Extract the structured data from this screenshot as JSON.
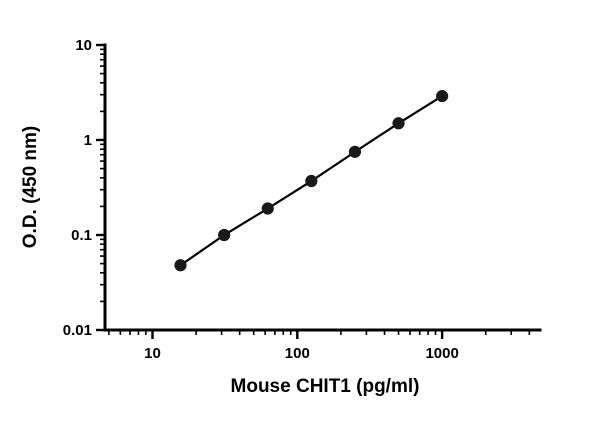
{
  "chart_data": {
    "type": "scatter",
    "title": "",
    "xlabel": "Mouse CHIT1 (pg/ml)",
    "ylabel": "O.D. (450 nm)",
    "x_scale": "log",
    "y_scale": "log",
    "x": [
      15.6,
      31.25,
      62.5,
      125,
      250,
      500,
      1000
    ],
    "y": [
      0.048,
      0.1,
      0.19,
      0.37,
      0.75,
      1.5,
      2.9
    ],
    "x_ticks": [
      {
        "value": 10,
        "label": "10"
      },
      {
        "value": 100,
        "label": "100"
      },
      {
        "value": 1000,
        "label": "1000"
      }
    ],
    "y_ticks": [
      {
        "value": 0.01,
        "label": "0.01"
      },
      {
        "value": 0.1,
        "label": "0.1"
      },
      {
        "value": 1,
        "label": "1"
      },
      {
        "value": 10,
        "label": "10"
      }
    ],
    "x_range": [
      4.7,
      4740
    ],
    "y_range": [
      0.01,
      10
    ],
    "legend": "none",
    "grid": "off",
    "line_color": "#000000",
    "marker_color": "#1a1a1a",
    "axis_color": "#000000"
  }
}
